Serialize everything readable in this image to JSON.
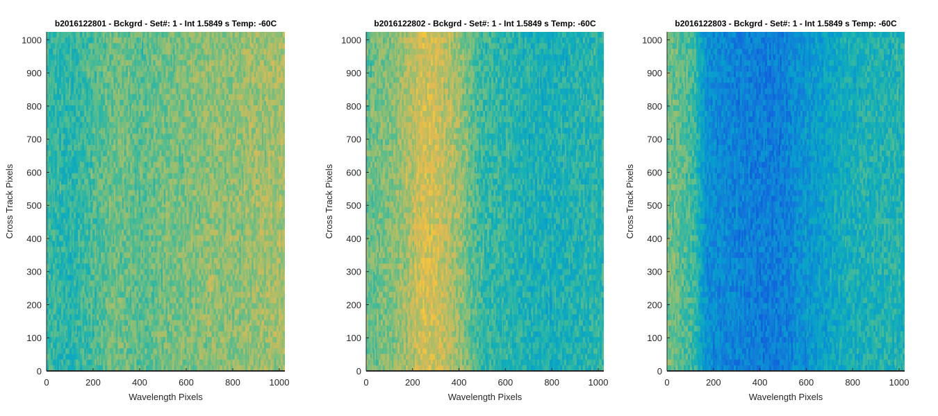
{
  "chart_data": [
    {
      "type": "heatmap",
      "title": "b2016122801 - Bckgrd - Set#: 1 - Int 1.5849 s Temp: -60C",
      "xlabel": "Wavelength Pixels",
      "ylabel": "Cross Track Pixels",
      "xlim": [
        0,
        1024
      ],
      "ylim": [
        0,
        1024
      ],
      "xticks": [
        "0",
        "200",
        "400",
        "600",
        "800",
        "1000"
      ],
      "yticks": [
        "0",
        "100",
        "200",
        "300",
        "400",
        "500",
        "600",
        "700",
        "800",
        "900",
        "1000"
      ],
      "colormap": "parula",
      "column_profile": {
        "x": [
          0,
          100,
          200,
          300,
          400,
          500,
          600,
          700,
          800,
          900,
          1024
        ],
        "level": [
          0.5,
          0.47,
          0.53,
          0.58,
          0.55,
          0.58,
          0.6,
          0.62,
          0.62,
          0.64,
          0.66
        ]
      }
    },
    {
      "type": "heatmap",
      "title": "b2016122802 - Bckgrd - Set#: 1 - Int 1.5849 s Temp: -60C",
      "xlabel": "Wavelength Pixels",
      "ylabel": "Cross Track Pixels",
      "xlim": [
        0,
        1024
      ],
      "ylim": [
        0,
        1024
      ],
      "xticks": [
        "0",
        "200",
        "400",
        "600",
        "800",
        "1000"
      ],
      "yticks": [
        "0",
        "100",
        "200",
        "300",
        "400",
        "500",
        "600",
        "700",
        "800",
        "900",
        "1000"
      ],
      "colormap": "parula",
      "column_profile": {
        "x": [
          0,
          100,
          200,
          250,
          300,
          400,
          450,
          500,
          600,
          700,
          800,
          900,
          1024
        ],
        "level": [
          0.57,
          0.6,
          0.68,
          0.74,
          0.72,
          0.64,
          0.56,
          0.5,
          0.48,
          0.45,
          0.44,
          0.46,
          0.48
        ]
      }
    },
    {
      "type": "heatmap",
      "title": "b2016122803 - Bckgrd - Set#: 1 - Int 1.5849 s Temp: -60C",
      "xlabel": "Wavelength Pixels",
      "ylabel": "Cross Track Pixels",
      "xlim": [
        0,
        1024
      ],
      "ylim": [
        0,
        1024
      ],
      "xticks": [
        "0",
        "200",
        "400",
        "600",
        "800",
        "1000"
      ],
      "yticks": [
        "0",
        "100",
        "200",
        "300",
        "400",
        "500",
        "600",
        "700",
        "800",
        "900",
        "1000"
      ],
      "colormap": "parula",
      "column_profile": {
        "x": [
          0,
          50,
          120,
          170,
          250,
          350,
          450,
          500,
          550,
          650,
          750,
          850,
          950,
          1024
        ],
        "level": [
          0.58,
          0.56,
          0.5,
          0.32,
          0.28,
          0.26,
          0.25,
          0.26,
          0.3,
          0.36,
          0.42,
          0.45,
          0.46,
          0.46
        ]
      }
    }
  ]
}
